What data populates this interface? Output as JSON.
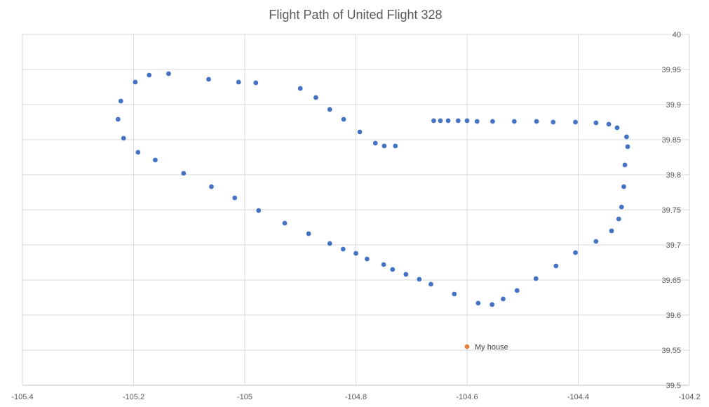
{
  "chart_data": {
    "type": "scatter",
    "title": "Flight Path of United Flight 328",
    "xlabel": "",
    "ylabel": "",
    "xlim": [
      -105.4,
      -104.2
    ],
    "ylim": [
      39.5,
      40
    ],
    "x_ticks": [
      "-105.4",
      "-105.2",
      "-105",
      "-104.8",
      "-104.6",
      "-104.4",
      "-104.2"
    ],
    "y_ticks": [
      "39.5",
      "39.55",
      "39.6",
      "39.65",
      "39.7",
      "39.75",
      "39.8",
      "39.85",
      "39.9",
      "39.95",
      "40"
    ],
    "grid": true,
    "legend": "none",
    "series": [
      {
        "color": "#4472c4",
        "points": [
          [
            -105.228,
            39.879
          ],
          [
            -105.223,
            39.905
          ],
          [
            -105.218,
            39.852
          ],
          [
            -105.197,
            39.932
          ],
          [
            -105.192,
            39.832
          ],
          [
            -105.172,
            39.942
          ],
          [
            -105.161,
            39.821
          ],
          [
            -105.137,
            39.944
          ],
          [
            -105.11,
            39.802
          ],
          [
            -105.065,
            39.936
          ],
          [
            -105.06,
            39.783
          ],
          [
            -105.018,
            39.767
          ],
          [
            -105.011,
            39.932
          ],
          [
            -104.98,
            39.931
          ],
          [
            -104.975,
            39.749
          ],
          [
            -104.928,
            39.731
          ],
          [
            -104.9,
            39.923
          ],
          [
            -104.885,
            39.716
          ],
          [
            -104.872,
            39.91
          ],
          [
            -104.847,
            39.893
          ],
          [
            -104.847,
            39.702
          ],
          [
            -104.822,
            39.879
          ],
          [
            -104.823,
            39.694
          ],
          [
            -104.8,
            39.688
          ],
          [
            -104.793,
            39.861
          ],
          [
            -104.78,
            39.68
          ],
          [
            -104.765,
            39.845
          ],
          [
            -104.75,
            39.672
          ],
          [
            -104.749,
            39.841
          ],
          [
            -104.734,
            39.665
          ],
          [
            -104.729,
            39.841
          ],
          [
            -104.71,
            39.658
          ],
          [
            -104.686,
            39.651
          ],
          [
            -104.665,
            39.644
          ],
          [
            -104.66,
            39.877
          ],
          [
            -104.648,
            39.877
          ],
          [
            -104.634,
            39.877
          ],
          [
            -104.623,
            39.63
          ],
          [
            -104.616,
            39.877
          ],
          [
            -104.6,
            39.877
          ],
          [
            -104.582,
            39.876
          ],
          [
            -104.58,
            39.617
          ],
          [
            -104.554,
            39.876
          ],
          [
            -104.555,
            39.615
          ],
          [
            -104.535,
            39.623
          ],
          [
            -104.515,
            39.876
          ],
          [
            -104.51,
            39.635
          ],
          [
            -104.475,
            39.876
          ],
          [
            -104.476,
            39.652
          ],
          [
            -104.445,
            39.875
          ],
          [
            -104.44,
            39.67
          ],
          [
            -104.405,
            39.875
          ],
          [
            -104.405,
            39.689
          ],
          [
            -104.368,
            39.874
          ],
          [
            -104.368,
            39.705
          ],
          [
            -104.345,
            39.872
          ],
          [
            -104.34,
            39.72
          ],
          [
            -104.33,
            39.867
          ],
          [
            -104.327,
            39.737
          ],
          [
            -104.322,
            39.754
          ],
          [
            -104.318,
            39.783
          ],
          [
            -104.316,
            39.814
          ],
          [
            -104.313,
            39.854
          ],
          [
            -104.311,
            39.84
          ]
        ]
      },
      {
        "color": "#ed7d31",
        "points": [
          [
            -104.6,
            39.555
          ]
        ]
      }
    ],
    "annotations": [
      {
        "text": "My house",
        "x": -104.6,
        "y": 39.555
      }
    ]
  }
}
